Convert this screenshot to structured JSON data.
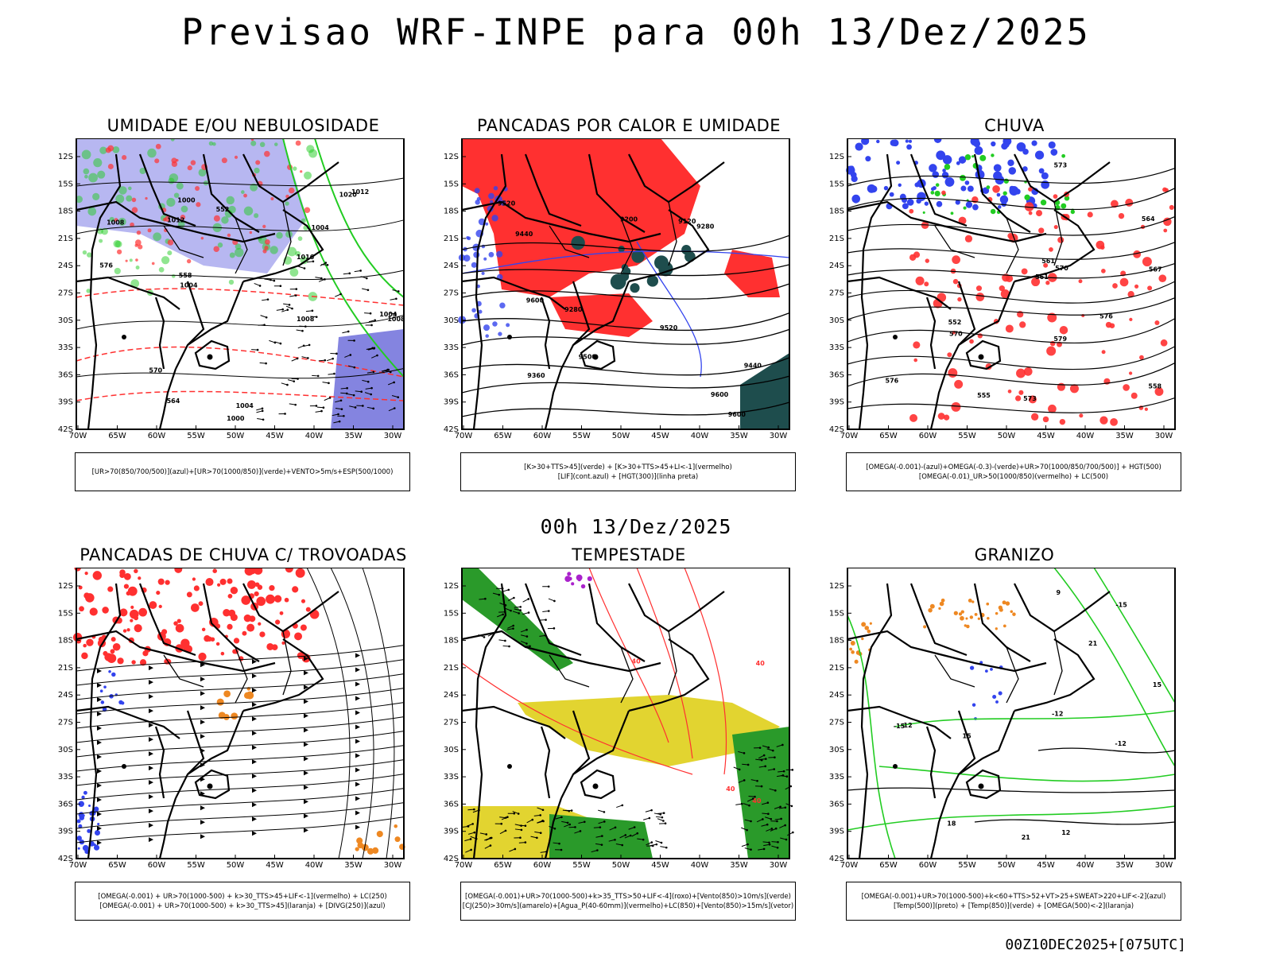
{
  "header": {
    "title": "Previsao WRF-INPE  para 00h 13/Dez/2025",
    "mid_title": "00h 13/Dez/2025",
    "footer_stamp": "00Z10DEC2025+[075UTC]"
  },
  "axes": {
    "lat_labels": [
      "12S",
      "15S",
      "18S",
      "21S",
      "24S",
      "27S",
      "30S",
      "33S",
      "36S",
      "39S",
      "42S"
    ],
    "lon_labels": [
      "70W",
      "65W",
      "60W",
      "55W",
      "50W",
      "45W",
      "40W",
      "35W",
      "30W"
    ]
  },
  "colors": {
    "blue": "#3344ee",
    "green": "#22cc22",
    "red": "#ff3030",
    "lavender": "#aaaaee",
    "teal": "#1e4d4d",
    "orange": "#ee8822",
    "purple": "#aa22cc",
    "yellow": "#e2d430"
  },
  "panels": [
    {
      "title": "UMIDADE E/OU NEBULOSIDADE",
      "legend_lines": [
        "[UR>70(850/700/500)](azul)+[UR>70(1000/850)](verde)+VENTO>5m/s+ESP(500/1000)"
      ],
      "labels": [
        "1008",
        "1012",
        "1016",
        "1004",
        "1020",
        "1000",
        "1008",
        "1004",
        "1012",
        "1008",
        "1004",
        "1000",
        "1004",
        "570",
        "576",
        "564",
        "558",
        "552"
      ]
    },
    {
      "title": "PANCADAS POR CALOR E UMIDADE",
      "legend_lines": [
        "[K>30+TTS>45](verde) + [K>30+TTS>45+LI<-1](vermelho)",
        "[LIF](cont.azul) + [HGT(300)](linha preta)"
      ],
      "labels": [
        "9600",
        "9600",
        "9520",
        "9520",
        "9440",
        "9440",
        "9360",
        "9280",
        "9280",
        "9200",
        "9120",
        "9600",
        "9500"
      ]
    },
    {
      "title": "CHUVA",
      "legend_lines": [
        "[OMEGA(-0.001)-(azul)+OMEGA(-0.3)-(verde)+UR>70(1000/850/700/500)] + HGT(500)",
        "[OMEGA(-0.01)_UR>50(1000/850)(vermelho) + LC(500)"
      ],
      "labels": [
        "579",
        "576",
        "573",
        "570",
        "567",
        "576",
        "573",
        "570",
        "561",
        "558",
        "555",
        "552",
        "564",
        "561"
      ]
    },
    {
      "title": "PANCADAS DE CHUVA C/ TROVOADAS",
      "legend_lines": [
        "[OMEGA(-0.001) + UR>70(1000-500) + k>30_TTS>45+LIF<-1](vermelho) + LC(250)",
        "[OMEGA(-0.001) + UR>70(1000-500) + k>30_TTS>45](laranja) + [DIVG(250)](azul)"
      ],
      "labels": []
    },
    {
      "title": "TEMPESTADE",
      "legend_lines": [
        "[OMEGA(-0.001)+UR>70(1000-500)+k>35_TTS>50+LIF<-4](roxo)+[Vento(850)>10m/s](verde)",
        "[CJ(250)>30m/s](amarelo)+[Agua_P(40-60mm)](vermelho)+LC(850)+[Vento(850)>15m/s](vetor)"
      ],
      "labels": [
        "40",
        "40",
        "40",
        "40"
      ]
    },
    {
      "title": "GRANIZO",
      "legend_lines": [
        "[OMEGA(-0.001)+UR>70(1000-500)+k<60+TTS>52+VT>25+SWEAT>220+LIF<-2](azul)",
        "[Temp(500)](preto) + [Temp(850)](verde) + [OMEGA(500)<-2](laranja)"
      ],
      "labels": [
        "-12",
        "-12",
        "-15",
        "-15",
        "-12",
        "15",
        "15",
        "18",
        "21",
        "12",
        "9",
        "21"
      ]
    }
  ]
}
